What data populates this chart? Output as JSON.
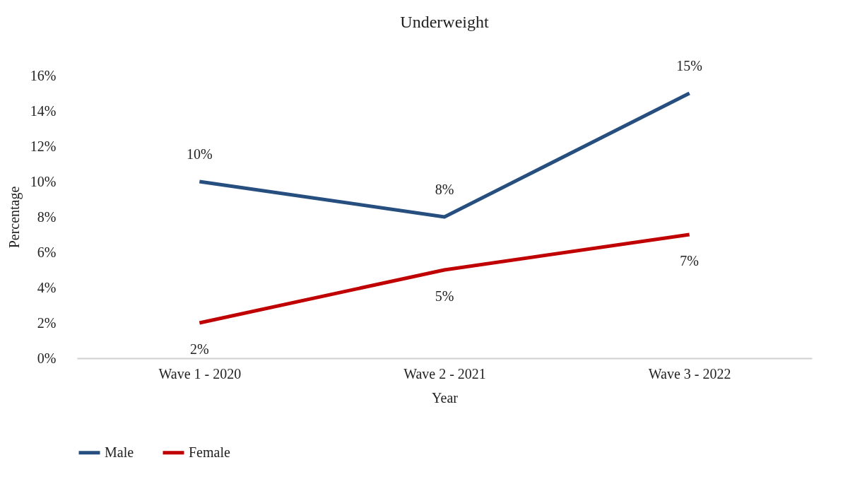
{
  "chart_data": {
    "type": "line",
    "title": "Underweight",
    "xlabel": "Year",
    "ylabel": "Percentage",
    "categories": [
      "Wave 1 - 2020",
      "Wave 2 - 2021",
      "Wave 3 - 2022"
    ],
    "series": [
      {
        "name": "Male",
        "color": "#264f80",
        "values": [
          10,
          8,
          15
        ],
        "value_labels": [
          "10%",
          "8%",
          "15%"
        ]
      },
      {
        "name": "Female",
        "color": "#c00000",
        "values": [
          2,
          5,
          7
        ],
        "value_labels": [
          "2%",
          "5%",
          "7%"
        ]
      }
    ],
    "ylim": [
      0,
      16
    ],
    "yticks": [
      {
        "value": 0,
        "label": "0%"
      },
      {
        "value": 2,
        "label": "2%"
      },
      {
        "value": 4,
        "label": "4%"
      },
      {
        "value": 6,
        "label": "6%"
      },
      {
        "value": 8,
        "label": "8%"
      },
      {
        "value": 10,
        "label": "10%"
      },
      {
        "value": 12,
        "label": "12%"
      },
      {
        "value": 14,
        "label": "14%"
      },
      {
        "value": 16,
        "label": "16%"
      }
    ],
    "grid": false,
    "legend": "bottom",
    "line_style": "solid",
    "marker": "none"
  }
}
